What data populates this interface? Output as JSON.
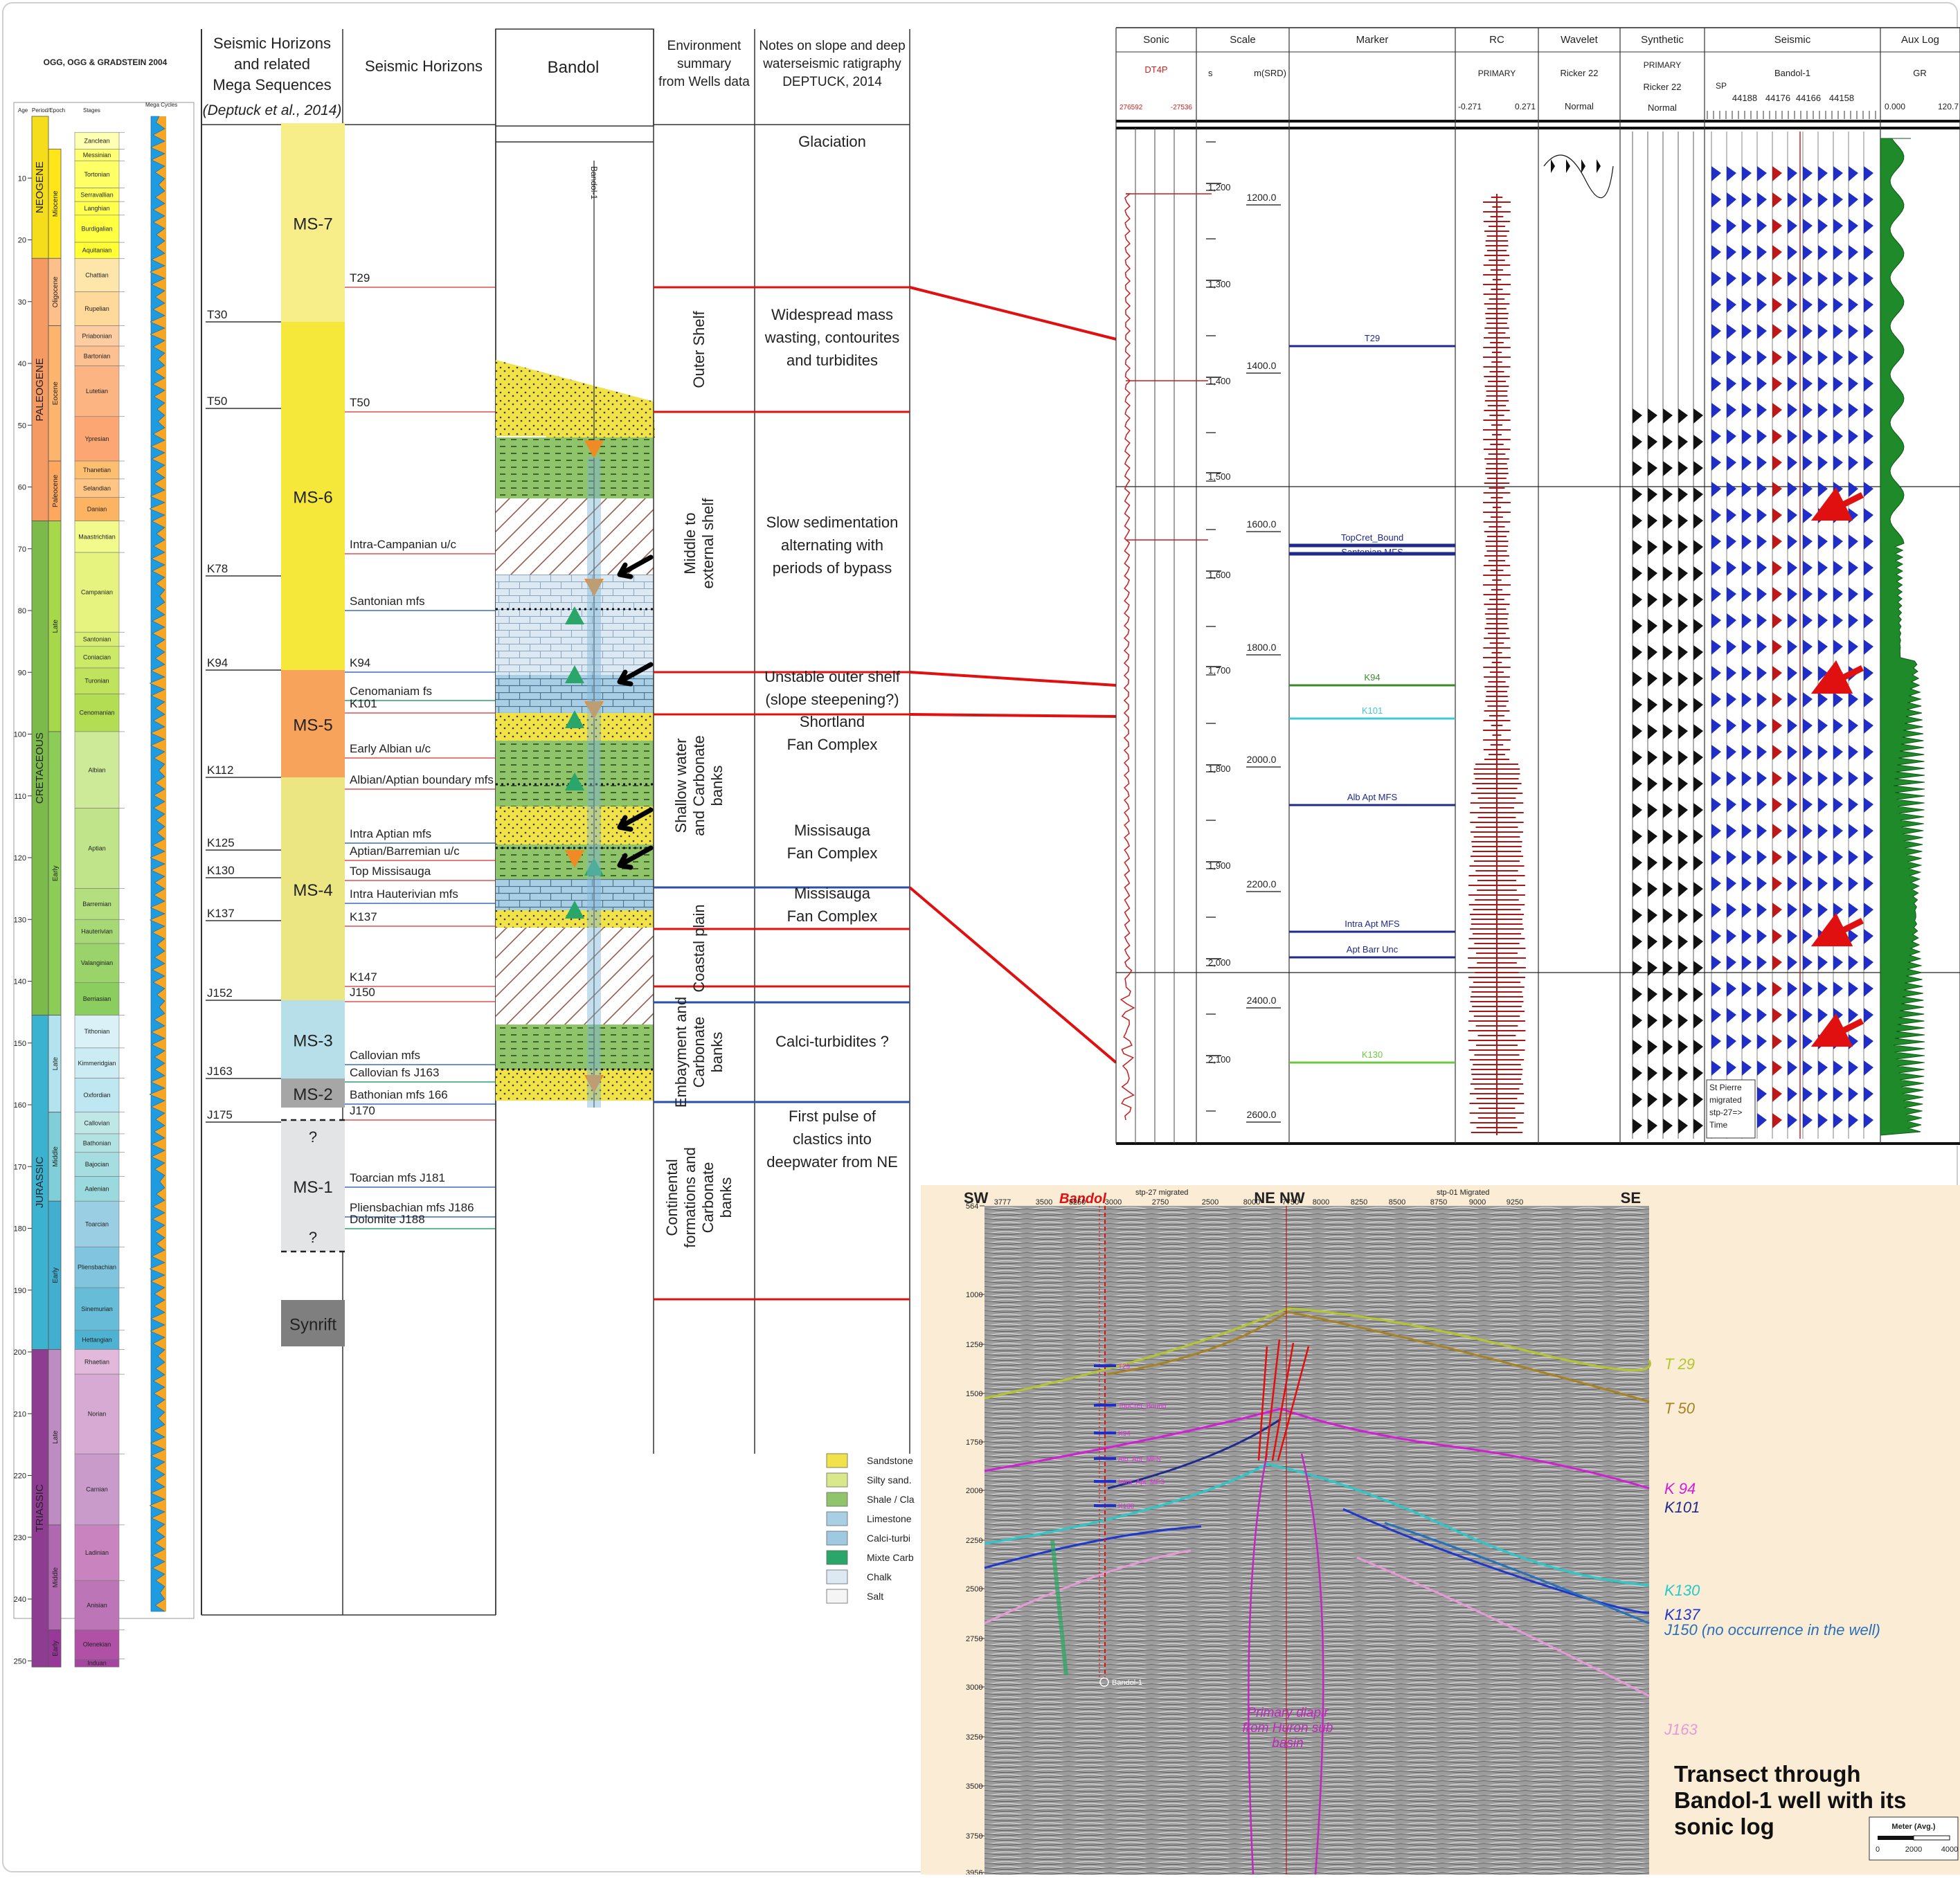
{
  "timescale": {
    "title": "OGG, OGG & GRADSTEIN 2004",
    "col_age": "Age",
    "col_period_epoch": "Period/Epoch",
    "col_stages": "Stages",
    "col_cycles": "Mega Cycles",
    "ages": [
      "10",
      "20",
      "30",
      "40",
      "50",
      "60",
      "70",
      "80",
      "90",
      "100",
      "110",
      "120",
      "130",
      "140",
      "150",
      "160",
      "170",
      "180",
      "190",
      "200",
      "210",
      "220",
      "230",
      "240",
      "250"
    ],
    "periods": [
      {
        "name": "NEOGENE",
        "from": 0,
        "to": 23,
        "color": "#f5dd1b"
      },
      {
        "name": "PALEOGENE",
        "from": 23,
        "to": 65.5,
        "color": "#f59a62"
      },
      {
        "name": "CRETACEOUS",
        "from": 65.5,
        "to": 145.5,
        "color": "#7dba4c"
      },
      {
        "name": "JURASSIC",
        "from": 145.5,
        "to": 199.6,
        "color": "#3bb2d0"
      },
      {
        "name": "TRIASSIC",
        "from": 199.6,
        "to": 251,
        "color": "#8e3c92"
      }
    ],
    "epochs": [
      {
        "name": "Miocene",
        "from": 5.3,
        "to": 23,
        "color": "#ffe619"
      },
      {
        "name": "Oligocene",
        "from": 23,
        "to": 33.9,
        "color": "#fec08a"
      },
      {
        "name": "Eocene",
        "from": 33.9,
        "to": 55.8,
        "color": "#fdb46c"
      },
      {
        "name": "Paleocene",
        "from": 55.8,
        "to": 65.5,
        "color": "#fda75f"
      },
      {
        "name": "Late",
        "from": 65.5,
        "to": 99.6,
        "color": "#a6d84a"
      },
      {
        "name": "Early",
        "from": 99.6,
        "to": 145.5,
        "color": "#8ccd57"
      },
      {
        "name": "Late",
        "from": 145.5,
        "to": 161.2,
        "color": "#b3e3ee"
      },
      {
        "name": "Middle",
        "from": 161.2,
        "to": 175.6,
        "color": "#80cfd8"
      },
      {
        "name": "Early",
        "from": 175.6,
        "to": 199.6,
        "color": "#42aed0"
      },
      {
        "name": "Late",
        "from": 199.6,
        "to": 228,
        "color": "#bd8cc3"
      },
      {
        "name": "Middle",
        "from": 228,
        "to": 245,
        "color": "#b168b1"
      },
      {
        "name": "Early",
        "from": 245,
        "to": 251,
        "color": "#983999"
      }
    ],
    "stages": [
      {
        "name": "Zanclean",
        "from": 2.6,
        "to": 5.3,
        "color": "#ffffb3"
      },
      {
        "name": "Messinian",
        "from": 5.3,
        "to": 7.2,
        "color": "#ffff73"
      },
      {
        "name": "Tortonian",
        "from": 7.2,
        "to": 11.6,
        "color": "#ffff66"
      },
      {
        "name": "Serravallian",
        "from": 11.6,
        "to": 13.8,
        "color": "#ffff59"
      },
      {
        "name": "Langhian",
        "from": 13.8,
        "to": 16,
        "color": "#ffff4d"
      },
      {
        "name": "Burdigalian",
        "from": 16,
        "to": 20.4,
        "color": "#ffff41"
      },
      {
        "name": "Aquitanian",
        "from": 20.4,
        "to": 23,
        "color": "#ffff33"
      },
      {
        "name": "Chattian",
        "from": 23,
        "to": 28.4,
        "color": "#fee6aa"
      },
      {
        "name": "Rupelian",
        "from": 28.4,
        "to": 33.9,
        "color": "#fed99a"
      },
      {
        "name": "Priabonian",
        "from": 33.9,
        "to": 37.2,
        "color": "#fdcda1"
      },
      {
        "name": "Bartonian",
        "from": 37.2,
        "to": 40.4,
        "color": "#fdc091"
      },
      {
        "name": "Lutetian",
        "from": 40.4,
        "to": 48.6,
        "color": "#fcb482"
      },
      {
        "name": "Ypresian",
        "from": 48.6,
        "to": 55.8,
        "color": "#fca773"
      },
      {
        "name": "Thanetian",
        "from": 55.8,
        "to": 58.7,
        "color": "#fdbf6f"
      },
      {
        "name": "Selandian",
        "from": 58.7,
        "to": 61.7,
        "color": "#fec584"
      },
      {
        "name": "Danian",
        "from": 61.7,
        "to": 65.5,
        "color": "#fdb462"
      },
      {
        "name": "Maastrichtian",
        "from": 65.5,
        "to": 70.6,
        "color": "#f2fa8c"
      },
      {
        "name": "Campanian",
        "from": 70.6,
        "to": 83.5,
        "color": "#e6f47f"
      },
      {
        "name": "Santonian",
        "from": 83.5,
        "to": 85.8,
        "color": "#d9ef74"
      },
      {
        "name": "Coniacian",
        "from": 85.8,
        "to": 89.3,
        "color": "#cce968"
      },
      {
        "name": "Turonian",
        "from": 89.3,
        "to": 93.5,
        "color": "#bfe35d"
      },
      {
        "name": "Cenomanian",
        "from": 93.5,
        "to": 99.6,
        "color": "#b3de53"
      },
      {
        "name": "Albian",
        "from": 99.6,
        "to": 112,
        "color": "#ccea97"
      },
      {
        "name": "Aptian",
        "from": 112,
        "to": 125,
        "color": "#bfe48a"
      },
      {
        "name": "Barremian",
        "from": 125,
        "to": 130,
        "color": "#b3df7f"
      },
      {
        "name": "Hauterivian",
        "from": 130,
        "to": 133.9,
        "color": "#a6d975"
      },
      {
        "name": "Valanginian",
        "from": 133.9,
        "to": 140.2,
        "color": "#99d36a"
      },
      {
        "name": "Berriasian",
        "from": 140.2,
        "to": 145.5,
        "color": "#8ccd60"
      },
      {
        "name": "Tithonian",
        "from": 145.5,
        "to": 150.8,
        "color": "#d9f1f7"
      },
      {
        "name": "Kimmeridgian",
        "from": 150.8,
        "to": 155.7,
        "color": "#ccecf4"
      },
      {
        "name": "Oxfordian",
        "from": 155.7,
        "to": 161.2,
        "color": "#bfe7f1"
      },
      {
        "name": "Callovian",
        "from": 161.2,
        "to": 164.7,
        "color": "#bfe7e5"
      },
      {
        "name": "Bathonian",
        "from": 164.7,
        "to": 167.7,
        "color": "#b3e2e3"
      },
      {
        "name": "Bajocian",
        "from": 167.7,
        "to": 171.6,
        "color": "#a6dde0"
      },
      {
        "name": "Aalenian",
        "from": 171.6,
        "to": 175.6,
        "color": "#9ad9dd"
      },
      {
        "name": "Toarcian",
        "from": 175.6,
        "to": 183,
        "color": "#99cee3"
      },
      {
        "name": "Pliensbachian",
        "from": 183,
        "to": 189.6,
        "color": "#80c5dd"
      },
      {
        "name": "Sinemurian",
        "from": 189.6,
        "to": 196.5,
        "color": "#67bcd8"
      },
      {
        "name": "Hettangian",
        "from": 196.5,
        "to": 199.6,
        "color": "#4eb3d3"
      },
      {
        "name": "Rhaetian",
        "from": 199.6,
        "to": 203.6,
        "color": "#e3b9db"
      },
      {
        "name": "Norian",
        "from": 203.6,
        "to": 216.5,
        "color": "#d6aad3"
      },
      {
        "name": "Carnian",
        "from": 216.5,
        "to": 228,
        "color": "#c99bcb"
      },
      {
        "name": "Ladinian",
        "from": 228,
        "to": 237,
        "color": "#c983bf"
      },
      {
        "name": "Anisian",
        "from": 237,
        "to": 245,
        "color": "#bc75b7"
      },
      {
        "name": "Olenekian",
        "from": 245,
        "to": 249.7,
        "color": "#b051a5"
      },
      {
        "name": "Induan",
        "from": 249.7,
        "to": 251,
        "color": "#a4469f"
      }
    ]
  },
  "col_headers": {
    "mega": "Seismic Horizons and related Mega Sequences",
    "mega_ref": "(Deptuck et al., 2014)",
    "horizons": "Seismic Horizons",
    "bandol": "Bandol",
    "environment": "Environment summary from Wells data",
    "notes": "Notes on slope and deep waterseismic ratigraphy DEPTUCK, 2014"
  },
  "mega_boundaries": [
    "T30",
    "T50",
    "K78",
    "K94",
    "K112",
    "K125",
    "K130",
    "K137",
    "J152",
    "J163",
    "J175"
  ],
  "sequences": [
    {
      "name": "MS-7",
      "color": "#f7ee8a"
    },
    {
      "name": "MS-6",
      "color": "#f5e83a"
    },
    {
      "name": "MS-5",
      "color": "#f7a35c"
    },
    {
      "name": "MS-4",
      "color": "#ebe682"
    },
    {
      "name": "MS-3",
      "color": "#b6dfe9"
    },
    {
      "name": "MS-2",
      "color": "#a6a6a6"
    },
    {
      "name": "MS-1",
      "color": "#e2e4e6"
    },
    {
      "name": "Synrift",
      "color": "#7f7f7f"
    }
  ],
  "question_marks": [
    "?",
    "?"
  ],
  "horizons": [
    "T29",
    "T50",
    "Intra-Campanian u/c",
    "Santonian mfs",
    "K94",
    "Cenomaniam fs",
    "K101",
    "Early Albian u/c",
    "Albian/Aptian boundary mfs",
    "Intra Aptian mfs",
    "Aptian/Barremian u/c",
    "Top Missisauga",
    "Intra Hauterivian mfs",
    "K137",
    "K147",
    "J150",
    "Callovian mfs",
    "Callovian fs J163",
    "Bathonian mfs 166",
    "J170",
    "Toarcian mfs J181",
    "Pliensbachian mfs J186",
    "Dolomite J188"
  ],
  "environments": [
    "Outer Shelf",
    "Middle to external shelf",
    "Shallow water and Carbonate banks",
    "Coastal plain",
    "Embayment and Carbonate banks",
    "Continental formations and Carbonate banks"
  ],
  "notes": [
    [
      "Glaciation"
    ],
    [
      "Widespread mass",
      "wasting, contourites",
      "and turbidites"
    ],
    [
      "Slow sedimentation",
      "alternating with",
      "periods of bypass"
    ],
    [
      "Unstable outer shelf",
      "(slope steepening?)"
    ],
    [
      "Shortland",
      "Fan Complex"
    ],
    [
      "Missisauga",
      "Fan Complex"
    ],
    [
      "Missisauga",
      "Fan Complex"
    ],
    [
      "Calci-turbidites ?"
    ],
    [
      "First pulse of",
      "clastics into",
      "deepwater from NE"
    ]
  ],
  "bandol_well_label": "Bandol-1",
  "legend": [
    {
      "label": "Sandstone",
      "color": "#f1e24a"
    },
    {
      "label": "Silty sand.",
      "color": "#d9e88a"
    },
    {
      "label": "Shale / Cla",
      "color": "#8fc46a"
    },
    {
      "label": "Limestone",
      "color": "#a9cfe5"
    },
    {
      "label": "Calci-turbi",
      "color": "#9fc9e0"
    },
    {
      "label": "Mixte Carb",
      "color": "#2aa66a"
    },
    {
      "label": "Chalk",
      "color": "#dce9f3"
    },
    {
      "label": "Salt",
      "color": "#f5f5f5"
    }
  ],
  "log": {
    "headers": [
      "Sonic",
      "Scale",
      "Marker",
      "RC",
      "Wavelet",
      "Synthetic",
      "Seismic",
      "Aux Log"
    ],
    "sub": {
      "sonic": [
        "DT4P",
        "276592",
        "-27536"
      ],
      "scale": [
        "s",
        "m(SRD)"
      ],
      "rc": [
        "PRIMARY",
        "-0.271",
        "0.271"
      ],
      "wavelet": [
        "Ricker 22",
        "Normal"
      ],
      "synthetic": [
        "PRIMARY",
        "Ricker 22",
        "Normal"
      ],
      "seismic": [
        "Bandol-1",
        "SP",
        "44188",
        "44176",
        "44166",
        "44158"
      ],
      "aux": [
        "GR",
        "0.000",
        "120.7"
      ]
    },
    "times": [
      "1,200",
      "1,300",
      "1,400",
      "1,500",
      "1,600",
      "1,700",
      "1,800",
      "1,900",
      "2,000",
      "2,100"
    ],
    "depths": [
      "1200.0",
      "1400.0",
      "1600.0",
      "1800.0",
      "2000.0",
      "2200.0",
      "2400.0",
      "2600.0"
    ],
    "markers": [
      "T29",
      "TopCret_Bound",
      "Santonian MFS",
      "K94",
      "K101",
      "Alb Apt MFS",
      "Intra Apt MFS",
      "Apt Barr Unc",
      "K130"
    ],
    "inset": [
      "St Pierre",
      "migrated",
      "stp-27=>",
      "Time"
    ]
  },
  "section": {
    "corners": [
      "SW",
      "NE NW",
      "SE"
    ],
    "well_name": "Bandol",
    "line_left": "stp-27 migrated",
    "line_right": "stp-01 Migrated",
    "sp_labels": [
      "3777",
      "3500",
      "3250",
      "3000",
      "2750",
      "2500",
      "8000",
      "7750",
      "8000",
      "8250",
      "8500",
      "8750",
      "9000",
      "9250"
    ],
    "ticks": [
      "564",
      "1000",
      "1250",
      "1500",
      "1750",
      "2000",
      "2250",
      "2500",
      "2750",
      "3000",
      "3250",
      "3500",
      "3750",
      "3956"
    ],
    "horizon_labels": [
      {
        "label": "T 29",
        "color": "#b3c62e"
      },
      {
        "label": "T 50",
        "color": "#a68222"
      },
      {
        "label": "K 94",
        "color": "#d11fd6"
      },
      {
        "label": "K101",
        "color": "#1f2a8c"
      },
      {
        "label": "K130",
        "color": "#27c9c9"
      },
      {
        "label": "K137",
        "color": "#1f38c9"
      },
      {
        "label": "J150 (no occurrence in the well)",
        "color": "#2a70b8"
      },
      {
        "label": "J163",
        "color": "#e59ad6"
      }
    ],
    "well_markers": [
      "T29",
      "TopCret_Bound",
      "K94",
      "Alb_Apt_MFS",
      "Intra_Apt_MFS",
      "K130"
    ],
    "well_bottom": "Bandol-1",
    "diapir_label": [
      "Primary diapir",
      "from Huron sub",
      "basin"
    ],
    "caption": [
      "Transect through",
      "Bandol-1 well with its",
      "sonic log"
    ],
    "scalebar": {
      "title": "Meter (Avg.)",
      "ticks": [
        "0",
        "2000",
        "4000"
      ]
    }
  }
}
